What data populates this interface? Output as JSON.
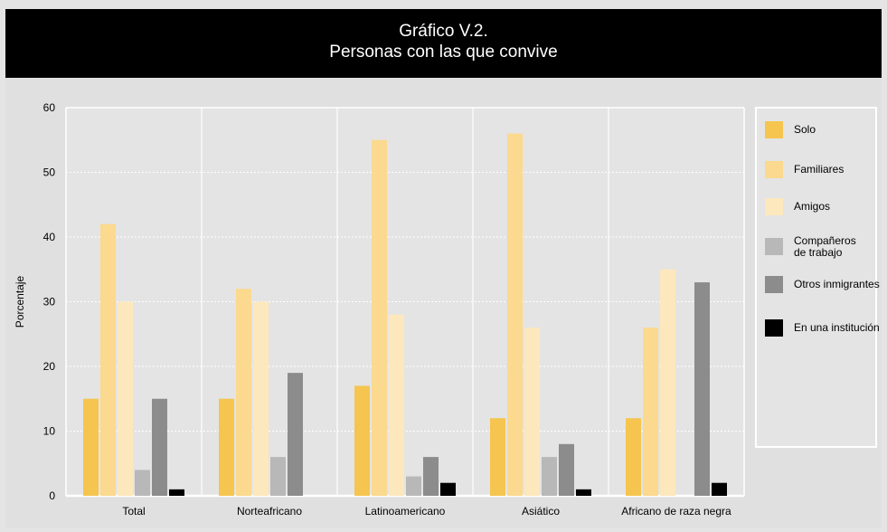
{
  "title": {
    "line1": "Gráfico V.2.",
    "line2": "Personas con las que convive"
  },
  "chart_data": {
    "type": "bar",
    "title": "Gráfico V.2. Personas con las que convive",
    "xlabel": "",
    "ylabel": "Porcentaje",
    "ylim": [
      0,
      60
    ],
    "yticks": [
      0,
      10,
      20,
      30,
      40,
      50,
      60
    ],
    "grid": true,
    "legend_position": "right",
    "categories": [
      "Total",
      "Norteafricano",
      "Latinoamericano",
      "Asiático",
      "Africano de raza negra"
    ],
    "series": [
      {
        "name": "Solo",
        "color": "#f5c54f",
        "values": [
          15,
          15,
          17,
          12,
          12
        ]
      },
      {
        "name": "Familiares",
        "color": "#fbd98e",
        "values": [
          42,
          32,
          55,
          56,
          26
        ]
      },
      {
        "name": "Amigos",
        "color": "#fde8bd",
        "values": [
          30,
          30,
          28,
          26,
          35
        ]
      },
      {
        "name": "Compañeros de trabajo",
        "color": "#b8b8b8",
        "values": [
          4,
          6,
          3,
          6,
          0
        ]
      },
      {
        "name": "Otros inmigrantes",
        "color": "#8c8c8c",
        "values": [
          15,
          19,
          6,
          8,
          33
        ]
      },
      {
        "name": "En una institución",
        "color": "#000000",
        "values": [
          1,
          0,
          2,
          1,
          2
        ]
      }
    ]
  }
}
